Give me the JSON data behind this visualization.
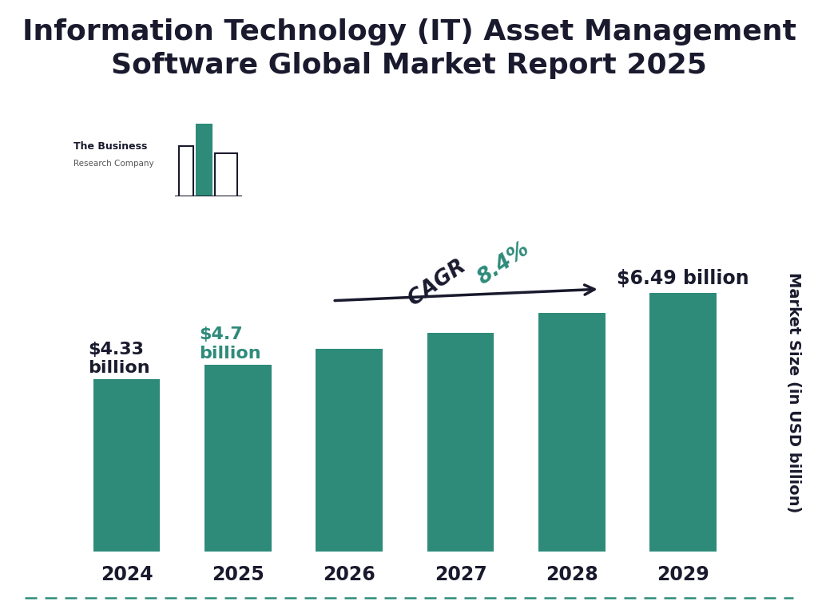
{
  "title": "Information Technology (IT) Asset Management\nSoftware Global Market Report 2025",
  "years": [
    "2024",
    "2025",
    "2026",
    "2027",
    "2028",
    "2029"
  ],
  "values": [
    4.33,
    4.7,
    5.1,
    5.5,
    5.99,
    6.49
  ],
  "bar_color": "#2e8b7a",
  "bar_width": 0.6,
  "ylabel": "Market Size (in USD billion)",
  "ylim_min": 3.5,
  "ylim_max": 7.2,
  "title_fontsize": 26,
  "title_color": "#1a1a2e",
  "tick_fontsize": 17,
  "ylabel_fontsize": 14,
  "label_2024": "$4.33\nbillion",
  "label_2025": "$4.7\nbillion",
  "label_2029": "$6.49 billion",
  "label_color_2024": "#1a1a2e",
  "label_color_2025": "#2e8b7a",
  "label_color_2029": "#1a1a2e",
  "cagr_text_bold": "CAGR ",
  "cagr_text_pct": "8.4%",
  "cagr_color": "#1a1a2e",
  "cagr_pct_color": "#2e8b7a",
  "background_color": "#ffffff",
  "border_color": "#2e8b7a",
  "logo_bar_color": "#2e8b7a",
  "logo_outline_color": "#1a1a2e"
}
